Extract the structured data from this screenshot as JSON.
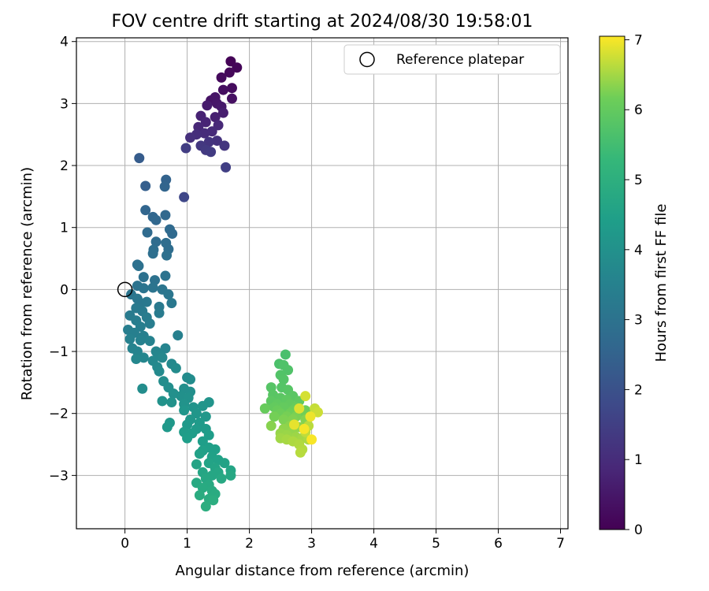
{
  "chart_data": {
    "type": "scatter",
    "title": "FOV centre drift starting at 2024/08/30 19:58:01",
    "xlabel": "Angular distance from reference (arcmin)",
    "ylabel": "Rotation from reference (arcmin)",
    "xlim": [
      -0.78,
      7.12
    ],
    "ylim": [
      -3.86,
      4.06
    ],
    "xticks": [
      0,
      1,
      2,
      3,
      4,
      5,
      6,
      7
    ],
    "yticks": [
      -3,
      -2,
      -1,
      0,
      1,
      2,
      3,
      4
    ],
    "grid": true,
    "legend": {
      "position": "top-right",
      "entries": [
        "Reference platepar"
      ]
    },
    "reference_point": {
      "x": 0,
      "y": 0,
      "label": "Reference platepar"
    },
    "colorbar": {
      "label": "Hours from first FF file",
      "range": [
        0,
        7.05
      ],
      "ticks": [
        0,
        1,
        2,
        3,
        4,
        5,
        6,
        7
      ],
      "colormap": "viridis"
    },
    "points": [
      {
        "x": 1.7,
        "y": 3.68,
        "c": 0.05
      },
      {
        "x": 1.8,
        "y": 3.58,
        "c": 0.1
      },
      {
        "x": 1.68,
        "y": 3.5,
        "c": 0.15
      },
      {
        "x": 1.55,
        "y": 3.42,
        "c": 0.2
      },
      {
        "x": 1.72,
        "y": 3.25,
        "c": 0.25
      },
      {
        "x": 1.58,
        "y": 3.22,
        "c": 0.3
      },
      {
        "x": 1.72,
        "y": 3.08,
        "c": 0.35
      },
      {
        "x": 1.38,
        "y": 3.05,
        "c": 0.4
      },
      {
        "x": 1.45,
        "y": 3.1,
        "c": 0.45
      },
      {
        "x": 1.48,
        "y": 3.0,
        "c": 0.5
      },
      {
        "x": 1.55,
        "y": 2.95,
        "c": 0.55
      },
      {
        "x": 1.32,
        "y": 2.97,
        "c": 0.6
      },
      {
        "x": 1.58,
        "y": 2.85,
        "c": 0.65
      },
      {
        "x": 1.45,
        "y": 2.78,
        "c": 0.7
      },
      {
        "x": 1.22,
        "y": 2.8,
        "c": 0.75
      },
      {
        "x": 1.3,
        "y": 2.7,
        "c": 0.8
      },
      {
        "x": 1.18,
        "y": 2.62,
        "c": 0.85
      },
      {
        "x": 1.5,
        "y": 2.65,
        "c": 0.9
      },
      {
        "x": 1.4,
        "y": 2.55,
        "c": 0.95
      },
      {
        "x": 1.28,
        "y": 2.52,
        "c": 1.0
      },
      {
        "x": 1.15,
        "y": 2.5,
        "c": 1.05
      },
      {
        "x": 1.05,
        "y": 2.45,
        "c": 1.1
      },
      {
        "x": 1.48,
        "y": 2.4,
        "c": 1.15
      },
      {
        "x": 1.35,
        "y": 2.38,
        "c": 1.2
      },
      {
        "x": 1.6,
        "y": 2.32,
        "c": 1.25
      },
      {
        "x": 1.22,
        "y": 2.32,
        "c": 1.3
      },
      {
        "x": 1.3,
        "y": 2.25,
        "c": 1.35
      },
      {
        "x": 1.38,
        "y": 2.22,
        "c": 1.4
      },
      {
        "x": 0.98,
        "y": 2.28,
        "c": 1.45
      },
      {
        "x": 1.62,
        "y": 1.97,
        "c": 1.5
      },
      {
        "x": 0.95,
        "y": 1.49,
        "c": 1.7
      },
      {
        "x": 0.23,
        "y": 2.12,
        "c": 2.3
      },
      {
        "x": 0.33,
        "y": 1.67,
        "c": 2.4
      },
      {
        "x": 0.66,
        "y": 1.77,
        "c": 2.5
      },
      {
        "x": 0.64,
        "y": 1.66,
        "c": 2.55
      },
      {
        "x": 0.33,
        "y": 1.28,
        "c": 2.6
      },
      {
        "x": 0.45,
        "y": 1.17,
        "c": 2.62
      },
      {
        "x": 0.5,
        "y": 1.12,
        "c": 2.65
      },
      {
        "x": 0.65,
        "y": 1.2,
        "c": 2.68
      },
      {
        "x": 0.72,
        "y": 0.97,
        "c": 2.7
      },
      {
        "x": 0.76,
        "y": 0.9,
        "c": 2.72
      },
      {
        "x": 0.36,
        "y": 0.92,
        "c": 2.75
      },
      {
        "x": 0.5,
        "y": 0.77,
        "c": 2.78
      },
      {
        "x": 0.66,
        "y": 0.75,
        "c": 2.8
      },
      {
        "x": 0.7,
        "y": 0.65,
        "c": 2.82
      },
      {
        "x": 0.46,
        "y": 0.64,
        "c": 2.85
      },
      {
        "x": 0.45,
        "y": 0.58,
        "c": 2.87
      },
      {
        "x": 0.67,
        "y": 0.55,
        "c": 2.9
      },
      {
        "x": 0.2,
        "y": 0.4,
        "c": 2.92
      },
      {
        "x": 0.22,
        "y": 0.38,
        "c": 2.94
      },
      {
        "x": 0.3,
        "y": 0.2,
        "c": 2.96
      },
      {
        "x": 0.48,
        "y": 0.15,
        "c": 2.98
      },
      {
        "x": 0.65,
        "y": 0.22,
        "c": 3.0
      },
      {
        "x": 0.2,
        "y": 0.06,
        "c": 3.02
      },
      {
        "x": 0.3,
        "y": 0.02,
        "c": 3.04
      },
      {
        "x": 0.45,
        "y": 0.03,
        "c": 3.06
      },
      {
        "x": 0.6,
        "y": 0.0,
        "c": 3.08
      },
      {
        "x": 0.1,
        "y": -0.08,
        "c": 3.1
      },
      {
        "x": 0.7,
        "y": -0.08,
        "c": 3.12
      },
      {
        "x": 0.2,
        "y": -0.15,
        "c": 3.14
      },
      {
        "x": 0.25,
        "y": -0.22,
        "c": 3.16
      },
      {
        "x": 0.35,
        "y": -0.2,
        "c": 3.18
      },
      {
        "x": 0.75,
        "y": -0.22,
        "c": 3.2
      },
      {
        "x": 0.55,
        "y": -0.28,
        "c": 3.22
      },
      {
        "x": 0.18,
        "y": -0.3,
        "c": 3.24
      },
      {
        "x": 0.28,
        "y": -0.35,
        "c": 3.26
      },
      {
        "x": 0.55,
        "y": -0.38,
        "c": 3.28
      },
      {
        "x": 0.08,
        "y": -0.42,
        "c": 3.3
      },
      {
        "x": 0.35,
        "y": -0.45,
        "c": 3.32
      },
      {
        "x": 0.18,
        "y": -0.5,
        "c": 3.34
      },
      {
        "x": 0.4,
        "y": -0.55,
        "c": 3.36
      },
      {
        "x": 0.25,
        "y": -0.6,
        "c": 3.38
      },
      {
        "x": 0.05,
        "y": -0.65,
        "c": 3.4
      },
      {
        "x": 0.15,
        "y": -0.7,
        "c": 3.42
      },
      {
        "x": 0.3,
        "y": -0.75,
        "c": 3.44
      },
      {
        "x": 0.85,
        "y": -0.74,
        "c": 3.46
      },
      {
        "x": 0.08,
        "y": -0.8,
        "c": 3.48
      },
      {
        "x": 0.25,
        "y": -0.82,
        "c": 3.5
      },
      {
        "x": 0.4,
        "y": -0.83,
        "c": 3.52
      },
      {
        "x": 0.12,
        "y": -0.95,
        "c": 3.55
      },
      {
        "x": 0.65,
        "y": -0.95,
        "c": 3.58
      },
      {
        "x": 0.2,
        "y": -1.0,
        "c": 3.6
      },
      {
        "x": 0.5,
        "y": -1.0,
        "c": 3.62
      },
      {
        "x": 0.55,
        "y": -1.05,
        "c": 3.64
      },
      {
        "x": 0.3,
        "y": -1.1,
        "c": 3.66
      },
      {
        "x": 0.18,
        "y": -1.12,
        "c": 3.68
      },
      {
        "x": 0.6,
        "y": -1.1,
        "c": 3.7
      },
      {
        "x": 0.45,
        "y": -1.15,
        "c": 3.72
      },
      {
        "x": 0.75,
        "y": -1.2,
        "c": 3.74
      },
      {
        "x": 0.52,
        "y": -1.25,
        "c": 3.76
      },
      {
        "x": 0.55,
        "y": -1.32,
        "c": 3.78
      },
      {
        "x": 0.82,
        "y": -1.27,
        "c": 3.8
      },
      {
        "x": 1.0,
        "y": -1.42,
        "c": 3.82
      },
      {
        "x": 1.05,
        "y": -1.45,
        "c": 3.84
      },
      {
        "x": 0.62,
        "y": -1.48,
        "c": 3.86
      },
      {
        "x": 0.28,
        "y": -1.6,
        "c": 3.88
      },
      {
        "x": 0.7,
        "y": -1.58,
        "c": 3.9
      },
      {
        "x": 0.95,
        "y": -1.6,
        "c": 3.92
      },
      {
        "x": 1.05,
        "y": -1.65,
        "c": 3.94
      },
      {
        "x": 0.78,
        "y": -1.68,
        "c": 3.96
      },
      {
        "x": 0.9,
        "y": -1.72,
        "c": 3.98
      },
      {
        "x": 1.02,
        "y": -1.75,
        "c": 4.0
      },
      {
        "x": 0.6,
        "y": -1.8,
        "c": 4.02
      },
      {
        "x": 0.75,
        "y": -1.82,
        "c": 4.04
      },
      {
        "x": 0.95,
        "y": -1.85,
        "c": 4.06
      },
      {
        "x": 1.35,
        "y": -1.82,
        "c": 4.08
      },
      {
        "x": 1.1,
        "y": -1.9,
        "c": 4.1
      },
      {
        "x": 1.25,
        "y": -1.88,
        "c": 4.12
      },
      {
        "x": 0.95,
        "y": -1.95,
        "c": 4.14
      },
      {
        "x": 1.15,
        "y": -2.0,
        "c": 4.16
      },
      {
        "x": 1.3,
        "y": -2.05,
        "c": 4.18
      },
      {
        "x": 1.05,
        "y": -2.1,
        "c": 4.2
      },
      {
        "x": 0.72,
        "y": -2.15,
        "c": 4.22
      },
      {
        "x": 0.68,
        "y": -2.22,
        "c": 4.24
      },
      {
        "x": 1.0,
        "y": -2.18,
        "c": 4.26
      },
      {
        "x": 1.2,
        "y": -2.15,
        "c": 4.28
      },
      {
        "x": 1.15,
        "y": -2.25,
        "c": 4.3
      },
      {
        "x": 1.3,
        "y": -2.25,
        "c": 4.32
      },
      {
        "x": 0.95,
        "y": -2.3,
        "c": 4.34
      },
      {
        "x": 1.08,
        "y": -2.32,
        "c": 4.36
      },
      {
        "x": 1.35,
        "y": -2.35,
        "c": 4.38
      },
      {
        "x": 1.0,
        "y": -2.4,
        "c": 4.4
      },
      {
        "x": 1.25,
        "y": -2.45,
        "c": 4.42
      },
      {
        "x": 1.35,
        "y": -2.55,
        "c": 4.44
      },
      {
        "x": 1.45,
        "y": -2.58,
        "c": 4.46
      },
      {
        "x": 1.25,
        "y": -2.6,
        "c": 4.48
      },
      {
        "x": 1.4,
        "y": -2.7,
        "c": 4.5
      },
      {
        "x": 1.2,
        "y": -2.65,
        "c": 4.52
      },
      {
        "x": 1.5,
        "y": -2.75,
        "c": 4.54
      },
      {
        "x": 1.6,
        "y": -2.8,
        "c": 4.56
      },
      {
        "x": 1.35,
        "y": -2.8,
        "c": 4.58
      },
      {
        "x": 1.15,
        "y": -2.82,
        "c": 4.6
      },
      {
        "x": 1.45,
        "y": -2.88,
        "c": 4.62
      },
      {
        "x": 1.7,
        "y": -2.92,
        "c": 4.64
      },
      {
        "x": 1.25,
        "y": -2.95,
        "c": 4.66
      },
      {
        "x": 1.5,
        "y": -2.95,
        "c": 4.68
      },
      {
        "x": 1.4,
        "y": -3.0,
        "c": 4.7
      },
      {
        "x": 1.7,
        "y": -3.0,
        "c": 4.72
      },
      {
        "x": 1.3,
        "y": -3.05,
        "c": 4.74
      },
      {
        "x": 1.55,
        "y": -3.05,
        "c": 4.76
      },
      {
        "x": 1.15,
        "y": -3.12,
        "c": 4.78
      },
      {
        "x": 1.35,
        "y": -3.15,
        "c": 4.8
      },
      {
        "x": 1.25,
        "y": -3.2,
        "c": 4.82
      },
      {
        "x": 1.4,
        "y": -3.25,
        "c": 4.84
      },
      {
        "x": 1.45,
        "y": -3.3,
        "c": 4.86
      },
      {
        "x": 1.2,
        "y": -3.32,
        "c": 4.88
      },
      {
        "x": 1.35,
        "y": -3.38,
        "c": 4.9
      },
      {
        "x": 1.42,
        "y": -3.4,
        "c": 4.92
      },
      {
        "x": 1.3,
        "y": -3.5,
        "c": 4.94
      },
      {
        "x": 2.58,
        "y": -1.05,
        "c": 5.6
      },
      {
        "x": 2.48,
        "y": -1.2,
        "c": 5.65
      },
      {
        "x": 2.55,
        "y": -1.22,
        "c": 5.7
      },
      {
        "x": 2.62,
        "y": -1.3,
        "c": 5.72
      },
      {
        "x": 2.5,
        "y": -1.38,
        "c": 5.74
      },
      {
        "x": 2.55,
        "y": -1.45,
        "c": 5.76
      },
      {
        "x": 2.52,
        "y": -1.58,
        "c": 5.78
      },
      {
        "x": 2.35,
        "y": -1.58,
        "c": 5.8
      },
      {
        "x": 2.62,
        "y": -1.62,
        "c": 5.82
      },
      {
        "x": 2.38,
        "y": -1.7,
        "c": 5.84
      },
      {
        "x": 2.7,
        "y": -1.72,
        "c": 5.86
      },
      {
        "x": 2.5,
        "y": -1.75,
        "c": 5.88
      },
      {
        "x": 2.35,
        "y": -1.8,
        "c": 5.9
      },
      {
        "x": 2.6,
        "y": -1.78,
        "c": 5.92
      },
      {
        "x": 2.8,
        "y": -1.8,
        "c": 5.94
      },
      {
        "x": 2.45,
        "y": -1.85,
        "c": 5.96
      },
      {
        "x": 2.65,
        "y": -1.85,
        "c": 5.98
      },
      {
        "x": 2.4,
        "y": -1.9,
        "c": 6.0
      },
      {
        "x": 2.55,
        "y": -1.9,
        "c": 6.02
      },
      {
        "x": 2.75,
        "y": -1.9,
        "c": 6.04
      },
      {
        "x": 2.25,
        "y": -1.92,
        "c": 6.06
      },
      {
        "x": 2.45,
        "y": -1.95,
        "c": 6.08
      },
      {
        "x": 2.7,
        "y": -1.95,
        "c": 6.1
      },
      {
        "x": 2.9,
        "y": -1.95,
        "c": 6.12
      },
      {
        "x": 2.5,
        "y": -2.0,
        "c": 6.14
      },
      {
        "x": 2.65,
        "y": -2.0,
        "c": 6.16
      },
      {
        "x": 2.85,
        "y": -2.0,
        "c": 6.18
      },
      {
        "x": 2.4,
        "y": -2.05,
        "c": 6.2
      },
      {
        "x": 2.6,
        "y": -2.05,
        "c": 6.22
      },
      {
        "x": 2.75,
        "y": -2.05,
        "c": 6.24
      },
      {
        "x": 2.55,
        "y": -2.1,
        "c": 6.26
      },
      {
        "x": 2.7,
        "y": -2.1,
        "c": 6.28
      },
      {
        "x": 2.9,
        "y": -2.1,
        "c": 6.3
      },
      {
        "x": 2.35,
        "y": -2.2,
        "c": 6.32
      },
      {
        "x": 2.65,
        "y": -2.2,
        "c": 6.34
      },
      {
        "x": 2.8,
        "y": -2.22,
        "c": 6.36
      },
      {
        "x": 2.55,
        "y": -2.25,
        "c": 6.38
      },
      {
        "x": 2.7,
        "y": -2.28,
        "c": 6.4
      },
      {
        "x": 2.5,
        "y": -2.32,
        "c": 6.42
      },
      {
        "x": 2.6,
        "y": -2.35,
        "c": 6.44
      },
      {
        "x": 2.75,
        "y": -2.38,
        "c": 6.46
      },
      {
        "x": 2.5,
        "y": -2.4,
        "c": 6.48
      },
      {
        "x": 2.85,
        "y": -2.4,
        "c": 6.5
      },
      {
        "x": 2.6,
        "y": -2.42,
        "c": 6.52
      },
      {
        "x": 2.95,
        "y": -2.42,
        "c": 6.54
      },
      {
        "x": 2.7,
        "y": -2.45,
        "c": 6.56
      },
      {
        "x": 2.8,
        "y": -2.5,
        "c": 6.58
      },
      {
        "x": 2.85,
        "y": -2.58,
        "c": 6.6
      },
      {
        "x": 2.82,
        "y": -2.63,
        "c": 6.62
      },
      {
        "x": 2.95,
        "y": -2.2,
        "c": 6.64
      },
      {
        "x": 2.9,
        "y": -2.3,
        "c": 6.66
      },
      {
        "x": 3.05,
        "y": -1.92,
        "c": 6.7
      },
      {
        "x": 3.1,
        "y": -1.98,
        "c": 6.75
      },
      {
        "x": 2.9,
        "y": -1.72,
        "c": 6.8
      },
      {
        "x": 2.8,
        "y": -1.92,
        "c": 6.85
      },
      {
        "x": 2.72,
        "y": -2.18,
        "c": 6.9
      },
      {
        "x": 2.98,
        "y": -2.05,
        "c": 6.95
      },
      {
        "x": 2.88,
        "y": -2.25,
        "c": 7.0
      },
      {
        "x": 3.0,
        "y": -2.42,
        "c": 7.02
      }
    ]
  }
}
